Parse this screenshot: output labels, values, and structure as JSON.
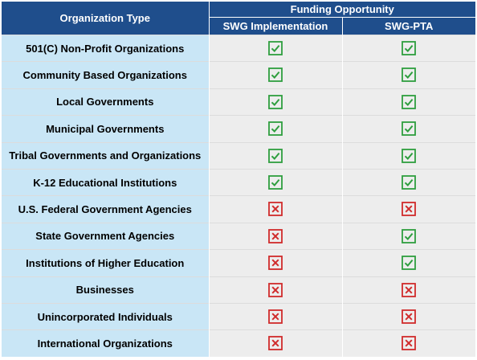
{
  "header": {
    "org_type_label": "Organization Type",
    "funding_label": "Funding Opportunity",
    "col1_label": "SWG Implementation",
    "col2_label": "SWG-PTA"
  },
  "colors": {
    "header_bg": "#1f4e8c",
    "name_bg": "#c9e6f6",
    "cell_bg": "#ededed",
    "check": "#2e9e3e",
    "cross": "#d02b2b"
  },
  "rows": [
    {
      "name": "501(C) Non-Profit Organizations",
      "swg_implementation": "check-icon",
      "swg_pta": "check-icon"
    },
    {
      "name": "Community Based Organizations",
      "swg_implementation": "check-icon",
      "swg_pta": "check-icon"
    },
    {
      "name": "Local Governments",
      "swg_implementation": "check-icon",
      "swg_pta": "check-icon"
    },
    {
      "name": "Municipal Governments",
      "swg_implementation": "check-icon",
      "swg_pta": "check-icon"
    },
    {
      "name": "Tribal Governments and Organizations",
      "swg_implementation": "check-icon",
      "swg_pta": "check-icon"
    },
    {
      "name": "K-12 Educational Institutions",
      "swg_implementation": "check-icon",
      "swg_pta": "check-icon"
    },
    {
      "name": "U.S. Federal Government Agencies",
      "swg_implementation": "cross-icon",
      "swg_pta": "cross-icon"
    },
    {
      "name": "State Government Agencies",
      "swg_implementation": "cross-icon",
      "swg_pta": "check-icon"
    },
    {
      "name": "Institutions of Higher Education",
      "swg_implementation": "cross-icon",
      "swg_pta": "check-icon"
    },
    {
      "name": "Businesses",
      "swg_implementation": "cross-icon",
      "swg_pta": "cross-icon"
    },
    {
      "name": "Unincorporated Individuals",
      "swg_implementation": "cross-icon",
      "swg_pta": "cross-icon"
    },
    {
      "name": "International Organizations",
      "swg_implementation": "cross-icon",
      "swg_pta": "cross-icon"
    }
  ]
}
